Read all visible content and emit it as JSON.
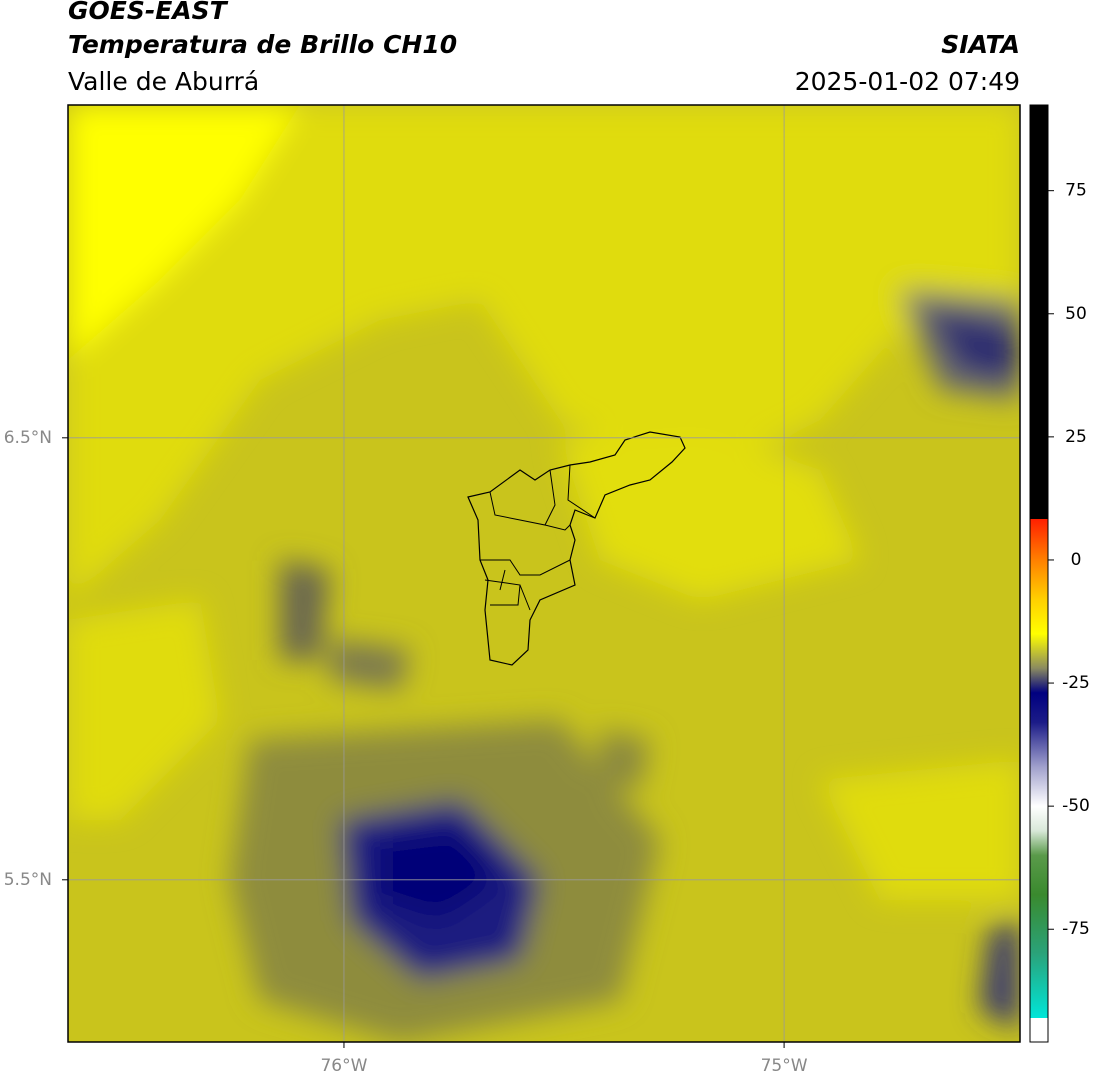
{
  "header": {
    "title": "GOES-EAST",
    "subtitle": "Temperatura de Brillo CH10",
    "region": "Valle de Aburrá",
    "agency": "SIATA",
    "datetime": "2025-01-02 07:49"
  },
  "map": {
    "xlim": [
      -76.627,
      -74.464
    ],
    "ylim": [
      5.133,
      7.253
    ],
    "xticks": [
      {
        "value": -76,
        "label": "76°W"
      },
      {
        "value": -75,
        "label": "75°W"
      }
    ],
    "yticks": [
      {
        "value": 6.5,
        "label": "6.5°N"
      },
      {
        "value": 5.5,
        "label": "5.5°N"
      }
    ],
    "grid": true,
    "grid_color": "#9a9a9a"
  },
  "colorbar": {
    "lim": [
      -97.9,
      92.4
    ],
    "ticks": [
      75,
      50,
      25,
      0,
      -25,
      -50,
      -75
    ],
    "colormap": [
      {
        "value": -97.9,
        "color": "#ffffff"
      },
      {
        "value": -93,
        "color": "#ffffff"
      },
      {
        "value": -93,
        "color": "#00e5d8"
      },
      {
        "value": -80,
        "color": "#2aa37a"
      },
      {
        "value": -68,
        "color": "#3a8a2e"
      },
      {
        "value": -60,
        "color": "#5a9a4a"
      },
      {
        "value": -55,
        "color": "#d8e8d8"
      },
      {
        "value": -50,
        "color": "#ffffff"
      },
      {
        "value": -42,
        "color": "#a0a0cc"
      },
      {
        "value": -33,
        "color": "#1c1c88"
      },
      {
        "value": -27,
        "color": "#000080"
      },
      {
        "value": -22,
        "color": "#8a8a60"
      },
      {
        "value": -15,
        "color": "#ffff00"
      },
      {
        "value": -8,
        "color": "#ffd000"
      },
      {
        "value": 0,
        "color": "#ff8000"
      },
      {
        "value": 8.3,
        "color": "#ff2000"
      },
      {
        "value": 8.3,
        "color": "#000000"
      },
      {
        "value": 92.4,
        "color": "#000000"
      }
    ]
  }
}
